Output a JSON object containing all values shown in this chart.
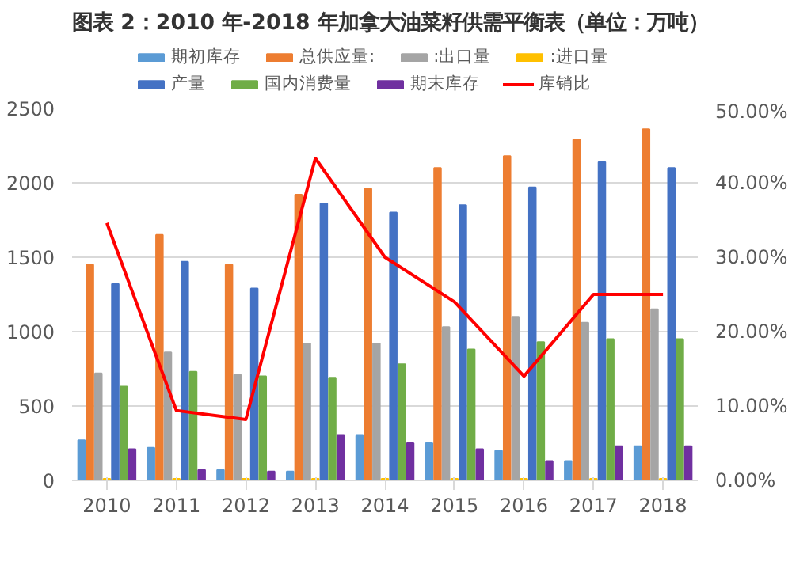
{
  "chart_data": {
    "type": "bar",
    "title": "图表 2：2010 年-2018 年加拿大油菜籽供需平衡表（单位：万吨）",
    "categories": [
      "2010",
      "2011",
      "2012",
      "2013",
      "2014",
      "2015",
      "2016",
      "2017",
      "2018"
    ],
    "series": [
      {
        "name": "期初库存",
        "color": "#5b9bd5",
        "values": [
          270,
          220,
          70,
          60,
          300,
          250,
          200,
          130,
          230
        ]
      },
      {
        "name": "总供应量:",
        "color": "#ed7d31",
        "values": [
          1450,
          1650,
          1450,
          1920,
          1960,
          2100,
          2180,
          2290,
          2360
        ]
      },
      {
        "name": ":出口量",
        "color": "#a5a5a5",
        "values": [
          720,
          860,
          710,
          920,
          920,
          1030,
          1100,
          1060,
          1150
        ]
      },
      {
        "name": ":进口量",
        "color": "#ffc000",
        "values": [
          10,
          10,
          10,
          10,
          10,
          10,
          10,
          10,
          10
        ]
      },
      {
        "name": "产量",
        "color": "#4472c4",
        "values": [
          1320,
          1470,
          1290,
          1860,
          1800,
          1850,
          1970,
          2140,
          2100
        ]
      },
      {
        "name": "国内消费量",
        "color": "#70ad47",
        "values": [
          630,
          730,
          700,
          690,
          780,
          880,
          930,
          950,
          950
        ]
      },
      {
        "name": "期末库存",
        "color": "#7030a0",
        "values": [
          210,
          70,
          60,
          300,
          250,
          210,
          130,
          230,
          230
        ]
      },
      {
        "name": "库销比",
        "color": "#ff0000",
        "type": "line",
        "axis": "y2",
        "values": [
          34.6,
          9.4,
          8.2,
          43.3,
          30,
          24,
          14,
          25,
          25
        ]
      }
    ],
    "ylim": [
      0,
      2500
    ],
    "yticks": [
      0,
      500,
      1000,
      1500,
      2000,
      2500
    ],
    "y2lim": [
      0,
      50
    ],
    "y2ticks": [
      {
        "value": 0,
        "label": "0.00%"
      },
      {
        "value": 10,
        "label": "10.00%"
      },
      {
        "value": 20,
        "label": "20.00%"
      },
      {
        "value": 30,
        "label": "30.00%"
      },
      {
        "value": 40,
        "label": "40.00%"
      },
      {
        "value": 50,
        "label": "50.00%"
      }
    ],
    "grid": "y",
    "legend": "top"
  }
}
